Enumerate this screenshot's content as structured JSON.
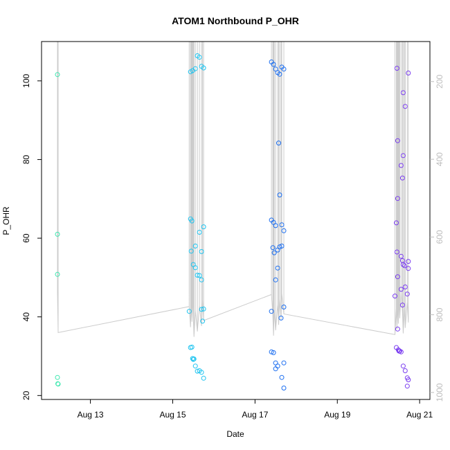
{
  "chart_data": {
    "type": "scatter",
    "title": "ATOM1 Northbound P_OHR",
    "xlabel": "Date",
    "ylabel": "P_OHR",
    "x_tick_labels": [
      {
        "date": "2024-08-13",
        "label": "Aug 13"
      },
      {
        "date": "2024-08-15",
        "label": "Aug 15"
      },
      {
        "date": "2024-08-17",
        "label": "Aug 17"
      },
      {
        "date": "2024-08-19",
        "label": "Aug 19"
      },
      {
        "date": "2024-08-21",
        "label": "Aug 21"
      }
    ],
    "y_ticks": [
      20,
      40,
      60,
      80,
      100
    ],
    "y_tick_labels": [
      "20",
      "40",
      "60",
      "80",
      "100"
    ],
    "ylim": [
      19,
      110
    ],
    "xlim": [
      "2024-08-11 19:30",
      "2024-08-21 06:00"
    ],
    "secondary_y_ticks": [
      200,
      400,
      600,
      800,
      1000
    ],
    "secondary_y_tick_labels": [
      "200",
      "400",
      "600",
      "800",
      "1000"
    ],
    "secondary_ylim_top_to_bottom": [
      97,
      1018
    ],
    "secondary_axis_color": "#bdbdbd",
    "profile_line_color": "#cccccc",
    "point_colors": [
      "#3ee8b0",
      "#1ec4f0",
      "#1a6df0",
      "#7a3cf0"
    ],
    "grid": false,
    "series": [
      {
        "color": "#3ee8b0",
        "points": [
          {
            "x": "2024-08-12 04:48",
            "y": 101.6
          },
          {
            "x": "2024-08-12 04:48",
            "y": 61.0
          },
          {
            "x": "2024-08-12 04:48",
            "y": 50.8
          },
          {
            "x": "2024-08-12 04:48",
            "y": 24.6
          },
          {
            "x": "2024-08-12 05:00",
            "y": 23.0
          },
          {
            "x": "2024-08-12 05:12",
            "y": 22.9
          }
        ]
      },
      {
        "color": "#1ec4f0",
        "points": [
          {
            "x": "2024-08-15 10:24",
            "y": 102.3
          },
          {
            "x": "2024-08-15 11:36",
            "y": 102.6
          },
          {
            "x": "2024-08-15 13:12",
            "y": 103.1
          },
          {
            "x": "2024-08-15 14:24",
            "y": 106.4
          },
          {
            "x": "2024-08-15 15:36",
            "y": 106.0
          },
          {
            "x": "2024-08-15 16:48",
            "y": 103.7
          },
          {
            "x": "2024-08-15 18:00",
            "y": 103.3
          },
          {
            "x": "2024-08-15 10:24",
            "y": 64.9
          },
          {
            "x": "2024-08-15 11:12",
            "y": 64.4
          },
          {
            "x": "2024-08-15 10:48",
            "y": 56.7
          },
          {
            "x": "2024-08-15 13:12",
            "y": 58.0
          },
          {
            "x": "2024-08-15 15:36",
            "y": 61.5
          },
          {
            "x": "2024-08-15 16:48",
            "y": 56.6
          },
          {
            "x": "2024-08-15 18:00",
            "y": 62.9
          },
          {
            "x": "2024-08-15 12:00",
            "y": 53.3
          },
          {
            "x": "2024-08-15 13:12",
            "y": 52.5
          },
          {
            "x": "2024-08-15 14:24",
            "y": 50.6
          },
          {
            "x": "2024-08-15 15:36",
            "y": 50.5
          },
          {
            "x": "2024-08-15 16:48",
            "y": 49.4
          },
          {
            "x": "2024-08-15 09:36",
            "y": 41.4
          },
          {
            "x": "2024-08-15 16:48",
            "y": 41.9
          },
          {
            "x": "2024-08-15 18:00",
            "y": 42.0
          },
          {
            "x": "2024-08-15 17:24",
            "y": 38.9
          },
          {
            "x": "2024-08-15 10:24",
            "y": 32.2
          },
          {
            "x": "2024-08-15 11:12",
            "y": 32.3
          },
          {
            "x": "2024-08-15 11:36",
            "y": 29.4
          },
          {
            "x": "2024-08-15 12:00",
            "y": 29.2
          },
          {
            "x": "2024-08-15 12:24",
            "y": 29.3
          },
          {
            "x": "2024-08-15 13:12",
            "y": 27.5
          },
          {
            "x": "2024-08-15 14:24",
            "y": 26.2
          },
          {
            "x": "2024-08-15 15:36",
            "y": 26.3
          },
          {
            "x": "2024-08-15 16:48",
            "y": 25.9
          },
          {
            "x": "2024-08-15 18:00",
            "y": 24.4
          }
        ]
      },
      {
        "color": "#1a6df0",
        "points": [
          {
            "x": "2024-08-17 09:36",
            "y": 104.8
          },
          {
            "x": "2024-08-17 10:48",
            "y": 104.2
          },
          {
            "x": "2024-08-17 12:00",
            "y": 103.0
          },
          {
            "x": "2024-08-17 13:12",
            "y": 102.1
          },
          {
            "x": "2024-08-17 14:24",
            "y": 101.7
          },
          {
            "x": "2024-08-17 15:36",
            "y": 103.5
          },
          {
            "x": "2024-08-17 16:48",
            "y": 103.0
          },
          {
            "x": "2024-08-17 13:48",
            "y": 84.2
          },
          {
            "x": "2024-08-17 14:24",
            "y": 71.0
          },
          {
            "x": "2024-08-17 09:36",
            "y": 64.6
          },
          {
            "x": "2024-08-17 10:48",
            "y": 64.0
          },
          {
            "x": "2024-08-17 12:00",
            "y": 63.2
          },
          {
            "x": "2024-08-17 15:36",
            "y": 63.4
          },
          {
            "x": "2024-08-17 16:48",
            "y": 61.9
          },
          {
            "x": "2024-08-17 10:24",
            "y": 57.6
          },
          {
            "x": "2024-08-17 11:12",
            "y": 56.3
          },
          {
            "x": "2024-08-17 13:12",
            "y": 57.0
          },
          {
            "x": "2024-08-17 14:24",
            "y": 57.8
          },
          {
            "x": "2024-08-17 15:36",
            "y": 58.0
          },
          {
            "x": "2024-08-17 13:12",
            "y": 52.4
          },
          {
            "x": "2024-08-17 12:00",
            "y": 49.4
          },
          {
            "x": "2024-08-17 09:36",
            "y": 41.4
          },
          {
            "x": "2024-08-17 16:48",
            "y": 42.5
          },
          {
            "x": "2024-08-17 15:12",
            "y": 39.7
          },
          {
            "x": "2024-08-17 09:36",
            "y": 31.1
          },
          {
            "x": "2024-08-17 10:48",
            "y": 30.9
          },
          {
            "x": "2024-08-17 12:00",
            "y": 28.3
          },
          {
            "x": "2024-08-17 13:12",
            "y": 27.5
          },
          {
            "x": "2024-08-17 12:00",
            "y": 26.8
          },
          {
            "x": "2024-08-17 16:48",
            "y": 28.3
          },
          {
            "x": "2024-08-17 15:36",
            "y": 24.6
          },
          {
            "x": "2024-08-17 16:48",
            "y": 21.9
          }
        ]
      },
      {
        "color": "#7a3cf0",
        "points": [
          {
            "x": "2024-08-20 10:48",
            "y": 103.2
          },
          {
            "x": "2024-08-20 17:24",
            "y": 102.0
          },
          {
            "x": "2024-08-20 14:24",
            "y": 97.0
          },
          {
            "x": "2024-08-20 15:36",
            "y": 93.5
          },
          {
            "x": "2024-08-20 11:12",
            "y": 84.8
          },
          {
            "x": "2024-08-20 14:24",
            "y": 81.0
          },
          {
            "x": "2024-08-20 13:12",
            "y": 78.5
          },
          {
            "x": "2024-08-20 14:00",
            "y": 75.3
          },
          {
            "x": "2024-08-20 11:12",
            "y": 70.1
          },
          {
            "x": "2024-08-20 10:24",
            "y": 63.9
          },
          {
            "x": "2024-08-20 10:48",
            "y": 56.5
          },
          {
            "x": "2024-08-20 13:12",
            "y": 55.4
          },
          {
            "x": "2024-08-20 14:00",
            "y": 54.3
          },
          {
            "x": "2024-08-20 14:24",
            "y": 53.3
          },
          {
            "x": "2024-08-20 15:12",
            "y": 53.0
          },
          {
            "x": "2024-08-20 17:24",
            "y": 54.1
          },
          {
            "x": "2024-08-20 17:24",
            "y": 52.3
          },
          {
            "x": "2024-08-20 11:12",
            "y": 50.2
          },
          {
            "x": "2024-08-20 15:36",
            "y": 47.6
          },
          {
            "x": "2024-08-20 13:12",
            "y": 47.0
          },
          {
            "x": "2024-08-20 16:48",
            "y": 45.8
          },
          {
            "x": "2024-08-20 09:36",
            "y": 45.3
          },
          {
            "x": "2024-08-20 14:00",
            "y": 43.0
          },
          {
            "x": "2024-08-20 11:12",
            "y": 36.9
          },
          {
            "x": "2024-08-20 10:24",
            "y": 32.2
          },
          {
            "x": "2024-08-20 11:36",
            "y": 31.6
          },
          {
            "x": "2024-08-20 12:00",
            "y": 31.3
          },
          {
            "x": "2024-08-20 12:24",
            "y": 31.3
          },
          {
            "x": "2024-08-20 13:12",
            "y": 31.1
          },
          {
            "x": "2024-08-20 14:24",
            "y": 27.5
          },
          {
            "x": "2024-08-20 15:36",
            "y": 26.3
          },
          {
            "x": "2024-08-20 16:48",
            "y": 24.5
          },
          {
            "x": "2024-08-20 17:24",
            "y": 24.0
          },
          {
            "x": "2024-08-20 16:48",
            "y": 22.4
          }
        ]
      }
    ]
  }
}
